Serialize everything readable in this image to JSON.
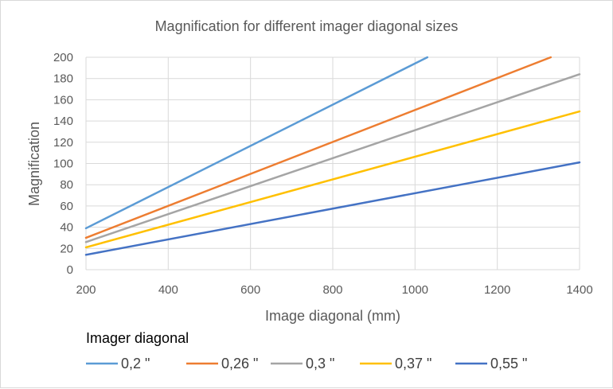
{
  "chart_data": {
    "type": "line",
    "title": "Magnification for different imager diagonal sizes",
    "xlabel": "Image diagonal (mm)",
    "ylabel": "Magnification",
    "xlim": [
      200,
      1400
    ],
    "ylim": [
      0,
      200
    ],
    "xticks": [
      200,
      400,
      600,
      800,
      1000,
      1200,
      1400
    ],
    "yticks": [
      0,
      20,
      40,
      60,
      80,
      100,
      120,
      140,
      160,
      180,
      200
    ],
    "grid": true,
    "legend_title": "Imager diagonal",
    "legend_position": "bottom",
    "series": [
      {
        "name": "0,2 \"",
        "color": "#5b9bd5",
        "x": [
          200,
          1030
        ],
        "y": [
          39,
          200
        ]
      },
      {
        "name": "0,26 \"",
        "color": "#ed7d31",
        "x": [
          200,
          1330
        ],
        "y": [
          30,
          200
        ]
      },
      {
        "name": "0,3 \"",
        "color": "#a5a5a5",
        "x": [
          200,
          1400
        ],
        "y": [
          26,
          184
        ]
      },
      {
        "name": "0,37 \"",
        "color": "#ffc000",
        "x": [
          200,
          1400
        ],
        "y": [
          21,
          149
        ]
      },
      {
        "name": "0,55 \"",
        "color": "#4472c4",
        "x": [
          200,
          1400
        ],
        "y": [
          14,
          101
        ]
      }
    ]
  }
}
